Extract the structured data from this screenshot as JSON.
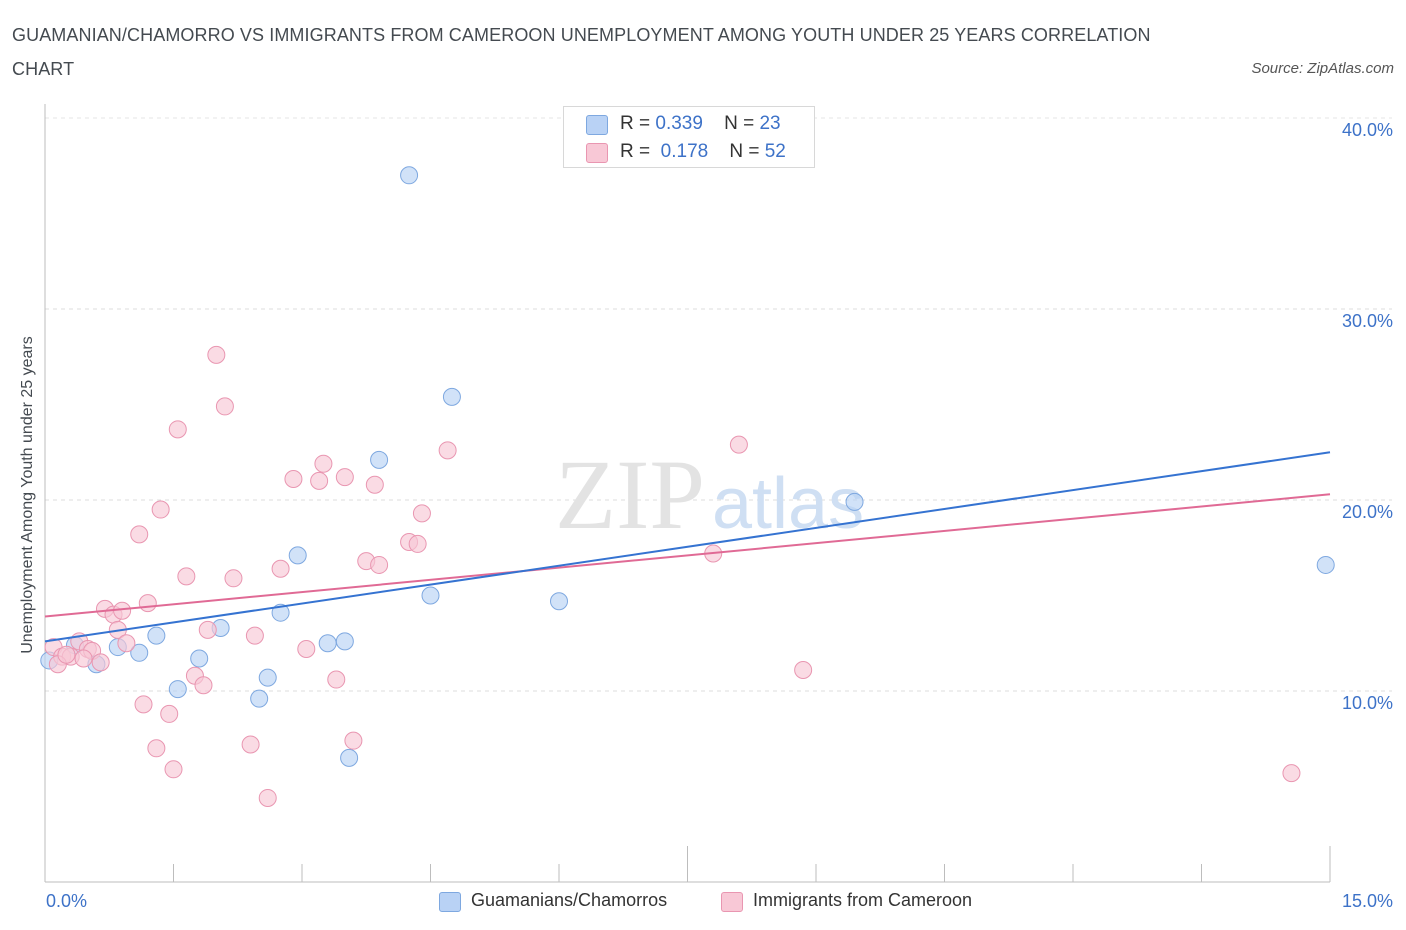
{
  "title": "GUAMANIAN/CHAMORRO VS IMMIGRANTS FROM CAMEROON UNEMPLOYMENT AMONG YOUTH UNDER 25 YEARS CORRELATION CHART",
  "source": "Source: ZipAtlas.com",
  "watermark": {
    "zip": "ZIP",
    "atlas": "atlas"
  },
  "legend": {
    "rows": [
      {
        "r_label": "R =",
        "r_value": "0.339",
        "n_label": "N =",
        "n_value": "23"
      },
      {
        "r_label": "R =",
        "r_value": "0.178",
        "n_label": "N =",
        "n_value": "52"
      }
    ]
  },
  "colors": {
    "blue_fill": "#b9d2f5",
    "blue_stroke": "#7ea8e0",
    "blue_line": "#3573d1",
    "pink_fill": "#f8c8d6",
    "pink_stroke": "#e996b1",
    "pink_line": "#e06a95",
    "tick_text": "#3d72c8"
  },
  "chart_data": {
    "type": "scatter",
    "title": "GUAMANIAN/CHAMORRO VS IMMIGRANTS FROM CAMEROON UNEMPLOYMENT AMONG YOUTH UNDER 25 YEARS CORRELATION CHART",
    "xlabel": "",
    "ylabel": "Unemployment Among Youth under 25 years",
    "xlim": [
      0,
      15
    ],
    "ylim": [
      0,
      40
    ],
    "x_tick_labels": {
      "min": "0.0%",
      "max": "15.0%"
    },
    "y_tick_labels": [
      "10.0%",
      "20.0%",
      "30.0%",
      "40.0%"
    ],
    "y_tick_values": [
      10,
      20,
      30,
      40
    ],
    "series": [
      {
        "name": "Guamanians/Chamorros",
        "color": "blue",
        "r": 0.339,
        "n": 23,
        "trend": {
          "x0": 0,
          "y0": 12.6,
          "x1": 15,
          "y1": 22.5
        },
        "points": [
          [
            0.05,
            11.6
          ],
          [
            0.35,
            12.4
          ],
          [
            0.6,
            11.4
          ],
          [
            0.85,
            12.3
          ],
          [
            1.1,
            12.0
          ],
          [
            1.3,
            12.9
          ],
          [
            1.55,
            10.1
          ],
          [
            1.8,
            11.7
          ],
          [
            2.05,
            13.3
          ],
          [
            2.5,
            9.6
          ],
          [
            2.6,
            10.7
          ],
          [
            2.75,
            14.1
          ],
          [
            2.95,
            17.1
          ],
          [
            3.3,
            12.5
          ],
          [
            3.5,
            12.6
          ],
          [
            3.9,
            22.1
          ],
          [
            3.55,
            6.5
          ],
          [
            4.25,
            37.0
          ],
          [
            4.5,
            15.0
          ],
          [
            4.75,
            25.4
          ],
          [
            6.0,
            14.7
          ],
          [
            9.45,
            19.9
          ],
          [
            14.95,
            16.6
          ]
        ]
      },
      {
        "name": "Immigrants from Cameroon",
        "color": "pink",
        "r": 0.178,
        "n": 52,
        "trend": {
          "x0": 0,
          "y0": 13.9,
          "x1": 15,
          "y1": 20.3
        },
        "points": [
          [
            0.1,
            12.3
          ],
          [
            0.2,
            11.8
          ],
          [
            0.3,
            11.8
          ],
          [
            0.4,
            12.6
          ],
          [
            0.5,
            12.2
          ],
          [
            0.55,
            12.1
          ],
          [
            0.65,
            11.5
          ],
          [
            0.7,
            14.3
          ],
          [
            0.8,
            14.0
          ],
          [
            0.85,
            13.2
          ],
          [
            0.9,
            14.2
          ],
          [
            0.95,
            12.5
          ],
          [
            1.1,
            18.2
          ],
          [
            1.15,
            9.3
          ],
          [
            1.2,
            14.6
          ],
          [
            1.3,
            7.0
          ],
          [
            1.35,
            19.5
          ],
          [
            1.45,
            8.8
          ],
          [
            1.5,
            5.9
          ],
          [
            1.55,
            23.7
          ],
          [
            1.65,
            16.0
          ],
          [
            1.75,
            10.8
          ],
          [
            1.85,
            10.3
          ],
          [
            1.9,
            13.2
          ],
          [
            2.0,
            27.6
          ],
          [
            2.1,
            24.9
          ],
          [
            2.2,
            15.9
          ],
          [
            2.4,
            7.2
          ],
          [
            2.45,
            12.9
          ],
          [
            2.6,
            4.4
          ],
          [
            2.75,
            16.4
          ],
          [
            2.9,
            21.1
          ],
          [
            3.05,
            12.2
          ],
          [
            3.2,
            21.0
          ],
          [
            3.25,
            21.9
          ],
          [
            3.4,
            10.6
          ],
          [
            3.5,
            21.2
          ],
          [
            3.6,
            7.4
          ],
          [
            3.75,
            16.8
          ],
          [
            3.85,
            20.8
          ],
          [
            3.9,
            16.6
          ],
          [
            4.25,
            17.8
          ],
          [
            4.35,
            17.7
          ],
          [
            4.4,
            19.3
          ],
          [
            4.7,
            22.6
          ],
          [
            7.8,
            17.2
          ],
          [
            8.1,
            22.9
          ],
          [
            8.85,
            11.1
          ],
          [
            14.55,
            5.7
          ],
          [
            0.15,
            11.4
          ],
          [
            0.25,
            11.9
          ],
          [
            0.45,
            11.7
          ]
        ]
      }
    ],
    "bottom_legend": [
      "Guamanians/Chamorros",
      "Immigrants from Cameroon"
    ]
  }
}
